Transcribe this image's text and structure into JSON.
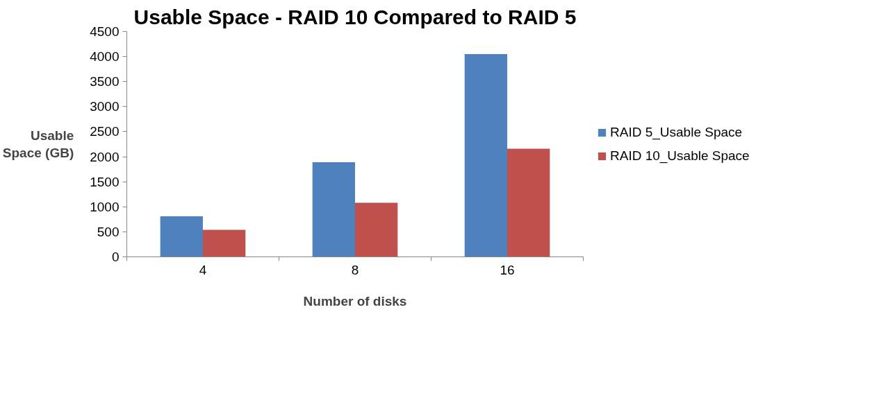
{
  "chart_data": {
    "type": "bar",
    "title": "Usable Space - RAID 10 Compared to RAID 5",
    "xlabel": "Number of disks",
    "ylabel": "Usable\nSpace (GB)",
    "categories": [
      "4",
      "8",
      "16"
    ],
    "series": [
      {
        "name": "RAID 5_Usable Space",
        "color": "#4f81bd",
        "values": [
          810,
          1890,
          4050
        ]
      },
      {
        "name": "RAID 10_Usable Space",
        "color": "#c0504d",
        "values": [
          540,
          1080,
          2160
        ]
      }
    ],
    "ylim": [
      0,
      4500
    ],
    "yticks": [
      0,
      500,
      1000,
      1500,
      2000,
      2500,
      3000,
      3500,
      4000,
      4500
    ],
    "grid": false,
    "legend": "right"
  }
}
